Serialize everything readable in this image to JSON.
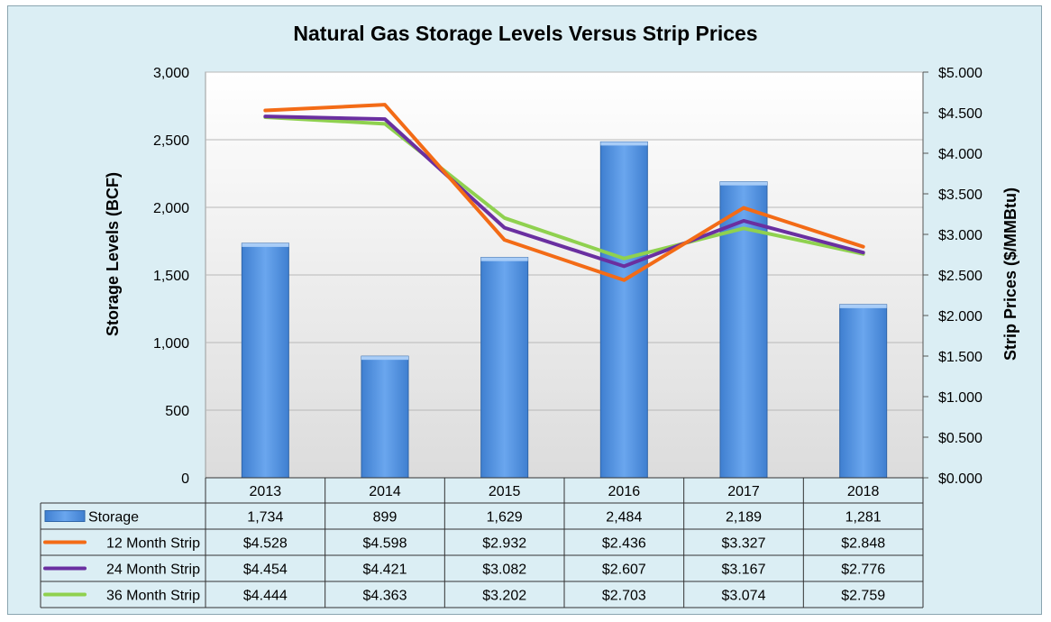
{
  "chart_data": {
    "type": "bar",
    "title": "Natural Gas Storage Levels Versus Strip Prices",
    "xlabel": "",
    "ylabel": "Storage Levels (BCF)",
    "y2label": "Strip Prices ($/MMBtu)",
    "categories": [
      "2013",
      "2014",
      "2015",
      "2016",
      "2017",
      "2018"
    ],
    "ylim": [
      0,
      3000
    ],
    "y2lim": [
      0,
      5
    ],
    "y_ticks": [
      "0",
      "500",
      "1,000",
      "1,500",
      "2,000",
      "2,500",
      "3,000"
    ],
    "y2_ticks": [
      "$0.000",
      "$0.500",
      "$1.000",
      "$1.500",
      "$2.000",
      "$2.500",
      "$3.000",
      "$3.500",
      "$4.000",
      "$4.500",
      "$5.000"
    ],
    "grid": true,
    "legend": "data-table",
    "series": [
      {
        "name": "Storage",
        "type": "bar",
        "axis": "left",
        "color": "#4f8fdc",
        "values": [
          1734,
          899,
          1629,
          2484,
          2189,
          1281
        ],
        "labels": [
          "1,734",
          "899",
          "1,629",
          "2,484",
          "2,189",
          "1,281"
        ]
      },
      {
        "name": "12 Month Strip",
        "type": "line",
        "axis": "right",
        "color": "#f36b16",
        "values": [
          4.528,
          4.598,
          2.932,
          2.436,
          3.327,
          2.848
        ],
        "labels": [
          "$4.528",
          "$4.598",
          "$2.932",
          "$2.436",
          "$3.327",
          "$2.848"
        ]
      },
      {
        "name": "24 Month Strip",
        "type": "line",
        "axis": "right",
        "color": "#6a2fa0",
        "values": [
          4.454,
          4.421,
          3.082,
          2.607,
          3.167,
          2.776
        ],
        "labels": [
          "$4.454",
          "$4.421",
          "$3.082",
          "$2.607",
          "$3.167",
          "$2.776"
        ]
      },
      {
        "name": "36 Month Strip",
        "type": "line",
        "axis": "right",
        "color": "#8fd14f",
        "values": [
          4.444,
          4.363,
          3.202,
          2.703,
          3.074,
          2.759
        ],
        "labels": [
          "$4.444",
          "$4.363",
          "$3.202",
          "$2.703",
          "$3.074",
          "$2.759"
        ]
      }
    ]
  }
}
